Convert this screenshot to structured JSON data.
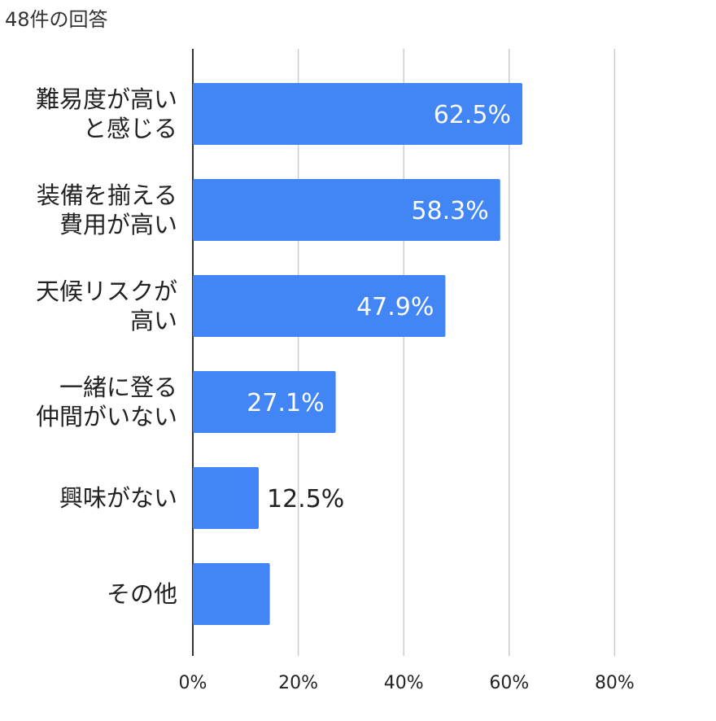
{
  "header": {
    "response_count": "48件の回答"
  },
  "colors": {
    "bar": "#4285f4",
    "grid": "#cccccc",
    "axis": "#333333"
  },
  "chart_data": {
    "type": "bar",
    "orientation": "horizontal",
    "categories": [
      [
        "難易度が高い",
        "と感じる"
      ],
      [
        "装備を揃える",
        "費用が高い"
      ],
      [
        "天候リスクが",
        "高い"
      ],
      [
        "一緒に登る",
        "仲間がいない"
      ],
      [
        "興味がない"
      ],
      [
        "その他"
      ]
    ],
    "values": [
      62.5,
      58.3,
      47.9,
      27.1,
      12.5,
      14.6
    ],
    "value_labels": [
      "62.5%",
      "58.3%",
      "47.9%",
      "27.1%",
      "12.5%",
      ""
    ],
    "xlim": [
      0,
      100
    ],
    "xticks": [
      0,
      20,
      40,
      60,
      80
    ],
    "xtick_labels": [
      "0%",
      "20%",
      "40%",
      "60%",
      "80%"
    ],
    "grid": true,
    "title": "",
    "xlabel": "",
    "ylabel": ""
  }
}
